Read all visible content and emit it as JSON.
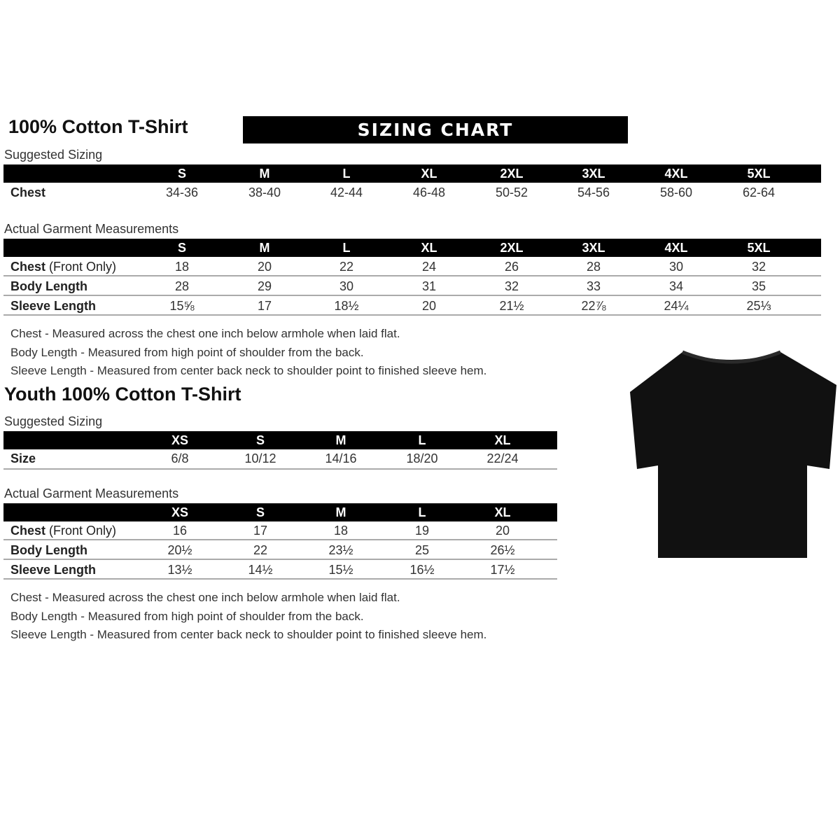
{
  "adult": {
    "title": "100% Cotton T-Shirt",
    "banner": "SIZING CHART",
    "suggested_label": "Suggested Sizing",
    "sizes": [
      "S",
      "M",
      "L",
      "XL",
      "2XL",
      "3XL",
      "4XL",
      "5XL"
    ],
    "chest_label": "Chest",
    "chest": [
      "34-36",
      "38-40",
      "42-44",
      "46-48",
      "50-52",
      "54-56",
      "58-60",
      "62-64"
    ],
    "actual_label": "Actual Garment Measurements",
    "rows": [
      {
        "label": "Chest",
        "sub": "(Front Only)",
        "values": [
          "18",
          "20",
          "22",
          "24",
          "26",
          "28",
          "30",
          "32"
        ]
      },
      {
        "label": "Body Length",
        "sub": "",
        "values": [
          "28",
          "29",
          "30",
          "31",
          "32",
          "33",
          "34",
          "35"
        ]
      },
      {
        "label": "Sleeve Length",
        "sub": "",
        "values": [
          "15⅝",
          "17",
          "18½",
          "20",
          "21½",
          "22⅞",
          "24¼",
          "25⅓"
        ]
      }
    ],
    "notes": [
      "Chest - Measured across the chest one inch below armhole when laid flat.",
      "Body Length - Measured from high point of shoulder from the back.",
      "Sleeve Length - Measured from center back neck to shoulder point to finished sleeve hem."
    ]
  },
  "youth": {
    "title": "Youth 100% Cotton T-Shirt",
    "suggested_label": "Suggested Sizing",
    "sizes": [
      "XS",
      "S",
      "M",
      "L",
      "XL"
    ],
    "size_label": "Size",
    "size_values": [
      "6/8",
      "10/12",
      "14/16",
      "18/20",
      "22/24"
    ],
    "actual_label": "Actual Garment Measurements",
    "rows": [
      {
        "label": "Chest",
        "sub": "(Front Only)",
        "values": [
          "16",
          "17",
          "18",
          "19",
          "20"
        ]
      },
      {
        "label": "Body Length",
        "sub": "",
        "values": [
          "20½",
          "22",
          "23½",
          "25",
          "26½"
        ]
      },
      {
        "label": "Sleeve Length",
        "sub": "",
        "values": [
          "13½",
          "14½",
          "15½",
          "16½",
          "17½"
        ]
      }
    ],
    "notes": [
      "Chest - Measured across the chest one inch below armhole when laid flat.",
      "Body Length - Measured from high point of shoulder from the back.",
      "Sleeve Length - Measured from center back neck to shoulder point to finished sleeve hem."
    ]
  },
  "image": {
    "icon": "black-tshirt-icon",
    "color": "#111111"
  }
}
